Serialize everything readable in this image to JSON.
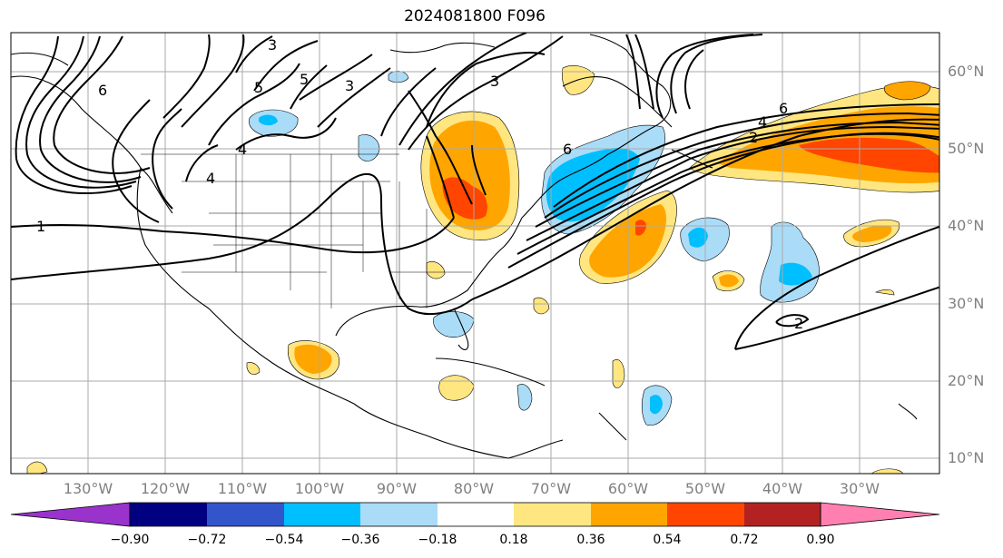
{
  "title": "2024081800 F096",
  "map": {
    "projection": "PlateCarree",
    "lon_range": [
      -140,
      -20
    ],
    "lat_range": [
      8,
      65
    ],
    "lon_ticks": [
      "130°W",
      "120°W",
      "110°W",
      "100°W",
      "90°W",
      "80°W",
      "70°W",
      "60°W",
      "50°W",
      "40°W",
      "30°W"
    ],
    "lat_ticks": [
      "10°N",
      "20°N",
      "30°N",
      "40°N",
      "50°N",
      "60°N"
    ],
    "gridlines": true,
    "contour_labels": [
      "1",
      "2",
      "2",
      "3",
      "3",
      "3",
      "4",
      "4",
      "4",
      "5",
      "5",
      "6",
      "6",
      "6"
    ]
  },
  "colorbar": {
    "colors": [
      "#9933cc",
      "#000080",
      "#3355cc",
      "#00bfff",
      "#aadcf8",
      "#ffffff",
      "#ffe680",
      "#ffa500",
      "#ff4500",
      "#b22222",
      "#ff80b0"
    ],
    "extend": "both",
    "tick_labels": [
      "−0.90",
      "−0.72",
      "−0.54",
      "−0.36",
      "−0.18",
      "0.18",
      "0.36",
      "0.54",
      "0.72",
      "0.90"
    ]
  }
}
